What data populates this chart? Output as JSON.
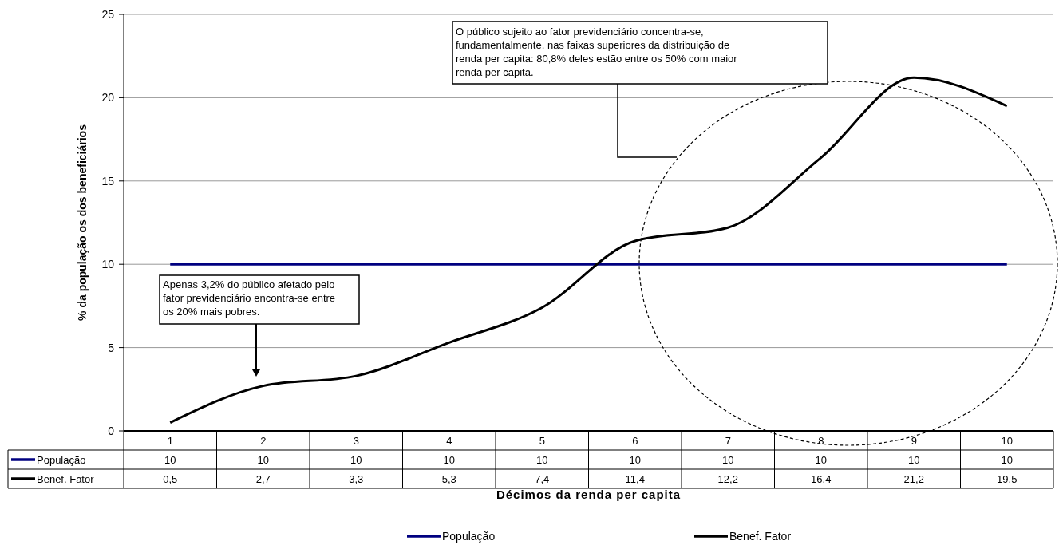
{
  "chart_data": {
    "type": "line",
    "xlabel": "Décimos da renda per capita",
    "ylabel": "% da população os dos beneficiários",
    "categories": [
      "1",
      "2",
      "3",
      "4",
      "5",
      "6",
      "7",
      "8",
      "9",
      "10"
    ],
    "series": [
      {
        "name": "População",
        "color": "#000080",
        "values": [
          10,
          10,
          10,
          10,
          10,
          10,
          10,
          10,
          10,
          10
        ],
        "value_labels": [
          "10",
          "10",
          "10",
          "10",
          "10",
          "10",
          "10",
          "10",
          "10",
          "10"
        ]
      },
      {
        "name": "Benef. Fator",
        "color": "#000000",
        "values": [
          0.5,
          2.7,
          3.3,
          5.3,
          7.4,
          11.4,
          12.2,
          16.4,
          21.2,
          19.5
        ],
        "value_labels": [
          "0,5",
          "2,7",
          "3,3",
          "5,3",
          "7,4",
          "11,4",
          "12,2",
          "16,4",
          "21,2",
          "19,5"
        ]
      }
    ],
    "ylim": [
      0,
      25
    ],
    "yticks": [
      0,
      5,
      10,
      15,
      20,
      25
    ],
    "grid": "y",
    "legend": "bottom",
    "marker": "none",
    "line_style": "solid",
    "annotations": [
      "Apenas 3,2% do público afetado pelo fator previdenciário encontra-se entre os 20% mais pobres.",
      "O público sujeito ao fator previdenciário concentra-se, fundamentalmente, nas faixas superiores da distribuição de renda per capita: 80,8% deles estão entre os 50% com maior renda per capita."
    ]
  }
}
